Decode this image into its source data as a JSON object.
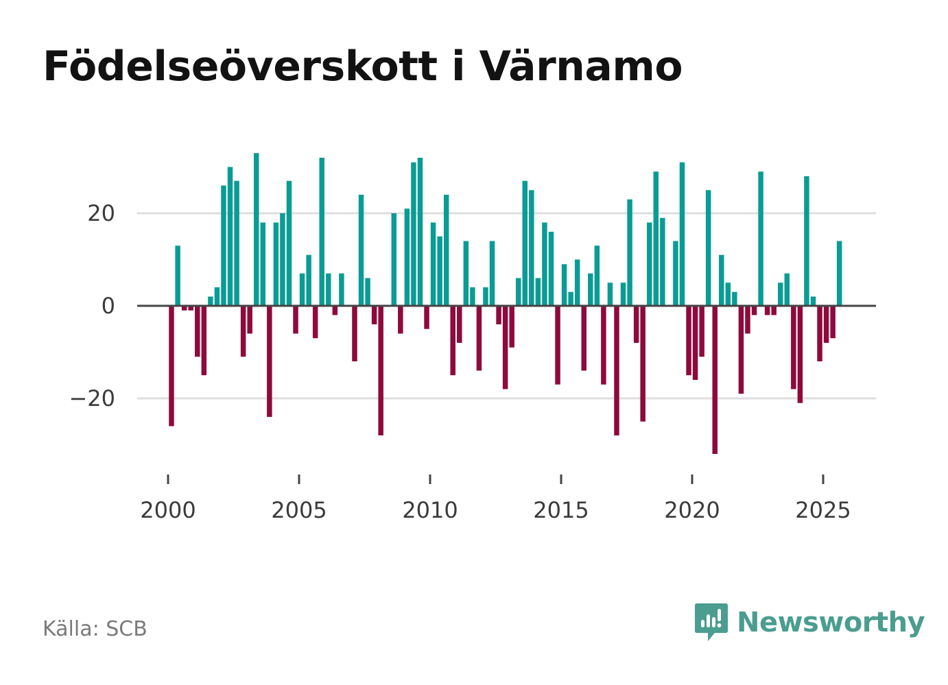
{
  "chart_data": {
    "type": "bar",
    "title": "Födelseöverskott i Värnamo",
    "xlabel": "",
    "ylabel": "",
    "x_tick_labels": [
      "2000",
      "2005",
      "2010",
      "2015",
      "2020",
      "2025"
    ],
    "y_tick_labels": [
      "20",
      "0",
      "−20"
    ],
    "y_tick_values": [
      20,
      0,
      -20
    ],
    "ylim": [
      -36,
      36
    ],
    "x_range": [
      1999.0,
      2027.0
    ],
    "grid": true,
    "positive_color": "#0a9c94",
    "negative_color": "#8e0a3c",
    "bars": [
      {
        "x": 2000.13,
        "value": -26
      },
      {
        "x": 2000.37,
        "value": 13
      },
      {
        "x": 2000.62,
        "value": -1
      },
      {
        "x": 2000.87,
        "value": -1
      },
      {
        "x": 2001.12,
        "value": -11
      },
      {
        "x": 2001.37,
        "value": -15
      },
      {
        "x": 2001.62,
        "value": 2
      },
      {
        "x": 2001.87,
        "value": 4
      },
      {
        "x": 2002.12,
        "value": 26
      },
      {
        "x": 2002.37,
        "value": 30
      },
      {
        "x": 2002.62,
        "value": 27
      },
      {
        "x": 2002.87,
        "value": -11
      },
      {
        "x": 2003.12,
        "value": -6
      },
      {
        "x": 2003.37,
        "value": 33
      },
      {
        "x": 2003.62,
        "value": 18
      },
      {
        "x": 2003.87,
        "value": -24
      },
      {
        "x": 2004.12,
        "value": 18
      },
      {
        "x": 2004.37,
        "value": 20
      },
      {
        "x": 2004.62,
        "value": 27
      },
      {
        "x": 2004.87,
        "value": -6
      },
      {
        "x": 2005.12,
        "value": 7
      },
      {
        "x": 2005.37,
        "value": 11
      },
      {
        "x": 2005.62,
        "value": -7
      },
      {
        "x": 2005.87,
        "value": 32
      },
      {
        "x": 2006.12,
        "value": 7
      },
      {
        "x": 2006.37,
        "value": -2
      },
      {
        "x": 2006.62,
        "value": 7
      },
      {
        "x": 2007.12,
        "value": -12
      },
      {
        "x": 2007.37,
        "value": 24
      },
      {
        "x": 2007.62,
        "value": 6
      },
      {
        "x": 2007.87,
        "value": -4
      },
      {
        "x": 2008.12,
        "value": -28
      },
      {
        "x": 2008.62,
        "value": 20
      },
      {
        "x": 2008.87,
        "value": -6
      },
      {
        "x": 2009.12,
        "value": 21
      },
      {
        "x": 2009.37,
        "value": 31
      },
      {
        "x": 2009.62,
        "value": 32
      },
      {
        "x": 2009.87,
        "value": -5
      },
      {
        "x": 2010.12,
        "value": 18
      },
      {
        "x": 2010.37,
        "value": 15
      },
      {
        "x": 2010.62,
        "value": 24
      },
      {
        "x": 2010.87,
        "value": -15
      },
      {
        "x": 2011.12,
        "value": -8
      },
      {
        "x": 2011.37,
        "value": 14
      },
      {
        "x": 2011.62,
        "value": 4
      },
      {
        "x": 2011.87,
        "value": -14
      },
      {
        "x": 2012.12,
        "value": 4
      },
      {
        "x": 2012.37,
        "value": 14
      },
      {
        "x": 2012.62,
        "value": -4
      },
      {
        "x": 2012.87,
        "value": -18
      },
      {
        "x": 2013.12,
        "value": -9
      },
      {
        "x": 2013.37,
        "value": 6
      },
      {
        "x": 2013.62,
        "value": 27
      },
      {
        "x": 2013.87,
        "value": 25
      },
      {
        "x": 2014.12,
        "value": 6
      },
      {
        "x": 2014.37,
        "value": 18
      },
      {
        "x": 2014.62,
        "value": 16
      },
      {
        "x": 2014.87,
        "value": -17
      },
      {
        "x": 2015.12,
        "value": 9
      },
      {
        "x": 2015.37,
        "value": 3
      },
      {
        "x": 2015.62,
        "value": 10
      },
      {
        "x": 2015.87,
        "value": -14
      },
      {
        "x": 2016.12,
        "value": 7
      },
      {
        "x": 2016.37,
        "value": 13
      },
      {
        "x": 2016.62,
        "value": -17
      },
      {
        "x": 2016.87,
        "value": 5
      },
      {
        "x": 2017.12,
        "value": -28
      },
      {
        "x": 2017.37,
        "value": 5
      },
      {
        "x": 2017.62,
        "value": 23
      },
      {
        "x": 2017.87,
        "value": -8
      },
      {
        "x": 2018.12,
        "value": -25
      },
      {
        "x": 2018.37,
        "value": 18
      },
      {
        "x": 2018.62,
        "value": 29
      },
      {
        "x": 2018.87,
        "value": 19
      },
      {
        "x": 2019.37,
        "value": 14
      },
      {
        "x": 2019.62,
        "value": 31
      },
      {
        "x": 2019.87,
        "value": -15
      },
      {
        "x": 2020.12,
        "value": -16
      },
      {
        "x": 2020.37,
        "value": -11
      },
      {
        "x": 2020.62,
        "value": 25
      },
      {
        "x": 2020.87,
        "value": -32
      },
      {
        "x": 2021.12,
        "value": 11
      },
      {
        "x": 2021.37,
        "value": 5
      },
      {
        "x": 2021.62,
        "value": 3
      },
      {
        "x": 2021.87,
        "value": -19
      },
      {
        "x": 2022.12,
        "value": -6
      },
      {
        "x": 2022.37,
        "value": -2
      },
      {
        "x": 2022.62,
        "value": 29
      },
      {
        "x": 2022.87,
        "value": -2
      },
      {
        "x": 2023.12,
        "value": -2
      },
      {
        "x": 2023.37,
        "value": 5
      },
      {
        "x": 2023.62,
        "value": 7
      },
      {
        "x": 2023.87,
        "value": -18
      },
      {
        "x": 2024.12,
        "value": -21
      },
      {
        "x": 2024.37,
        "value": 28
      },
      {
        "x": 2024.62,
        "value": 2
      },
      {
        "x": 2024.87,
        "value": -12
      },
      {
        "x": 2025.12,
        "value": -8
      },
      {
        "x": 2025.37,
        "value": -7
      },
      {
        "x": 2025.62,
        "value": 14
      }
    ]
  },
  "footer": {
    "source": "Källa: SCB",
    "brand": "Newsworthy"
  },
  "colors": {
    "brand": "#4a9d8f"
  }
}
